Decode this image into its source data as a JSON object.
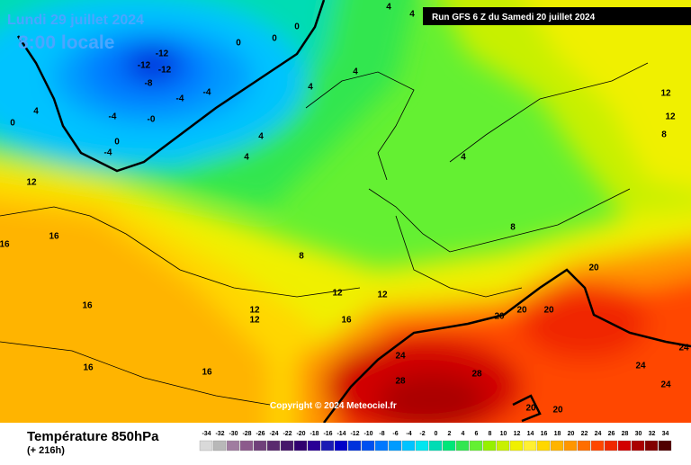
{
  "header": {
    "date": "Lundi 29 juillet 2024",
    "time": "8:00 locale",
    "run": "Run GFS 6 Z du Samedi 20 juillet 2024"
  },
  "copyright": "Copyright © 2024 Meteociel.fr",
  "footer": {
    "title": "Température 850hPa",
    "lead": "(+ 216h)"
  },
  "legend": {
    "labels": [
      "-34",
      "-32",
      "-30",
      "-28",
      "-26",
      "-24",
      "-22",
      "-20",
      "-18",
      "-16",
      "-14",
      "-12",
      "-10",
      "-8",
      "-6",
      "-4",
      "-2",
      "0",
      "2",
      "4",
      "6",
      "8",
      "10",
      "12",
      "14",
      "16",
      "18",
      "20",
      "22",
      "24",
      "26",
      "28",
      "30",
      "32",
      "34"
    ],
    "colors": [
      "#d9d9d9",
      "#b8b8b8",
      "#a07ca0",
      "#8c5a8c",
      "#70407a",
      "#5a2a6e",
      "#46186a",
      "#300070",
      "#2a0096",
      "#1a1ab4",
      "#0000c8",
      "#0032dc",
      "#0050f0",
      "#0078ff",
      "#009bff",
      "#00c3ff",
      "#00e6f0",
      "#00dcb4",
      "#00e678",
      "#32e650",
      "#64f032",
      "#96f000",
      "#c8f000",
      "#f0f000",
      "#fff032",
      "#ffd700",
      "#ffb400",
      "#ff9600",
      "#ff6e00",
      "#ff4600",
      "#f02800",
      "#d20000",
      "#aa0000",
      "#820000",
      "#500000"
    ]
  },
  "contour_labels": [
    "-12",
    "-12",
    "-12",
    "-8",
    "-4",
    "-4",
    "-4",
    "-0",
    "0",
    "-4",
    "0",
    "0",
    "0",
    "4",
    "4",
    "4",
    "4",
    "4",
    "12",
    "16",
    "16",
    "8",
    "12",
    "12",
    "12",
    "12",
    "16",
    "16",
    "16",
    "16",
    "24",
    "28",
    "28",
    "20",
    "20",
    "20",
    "20",
    "24",
    "24",
    "20",
    "20",
    "12",
    "12",
    "8",
    "8",
    "4",
    "4",
    "4",
    "0",
    "24"
  ]
}
